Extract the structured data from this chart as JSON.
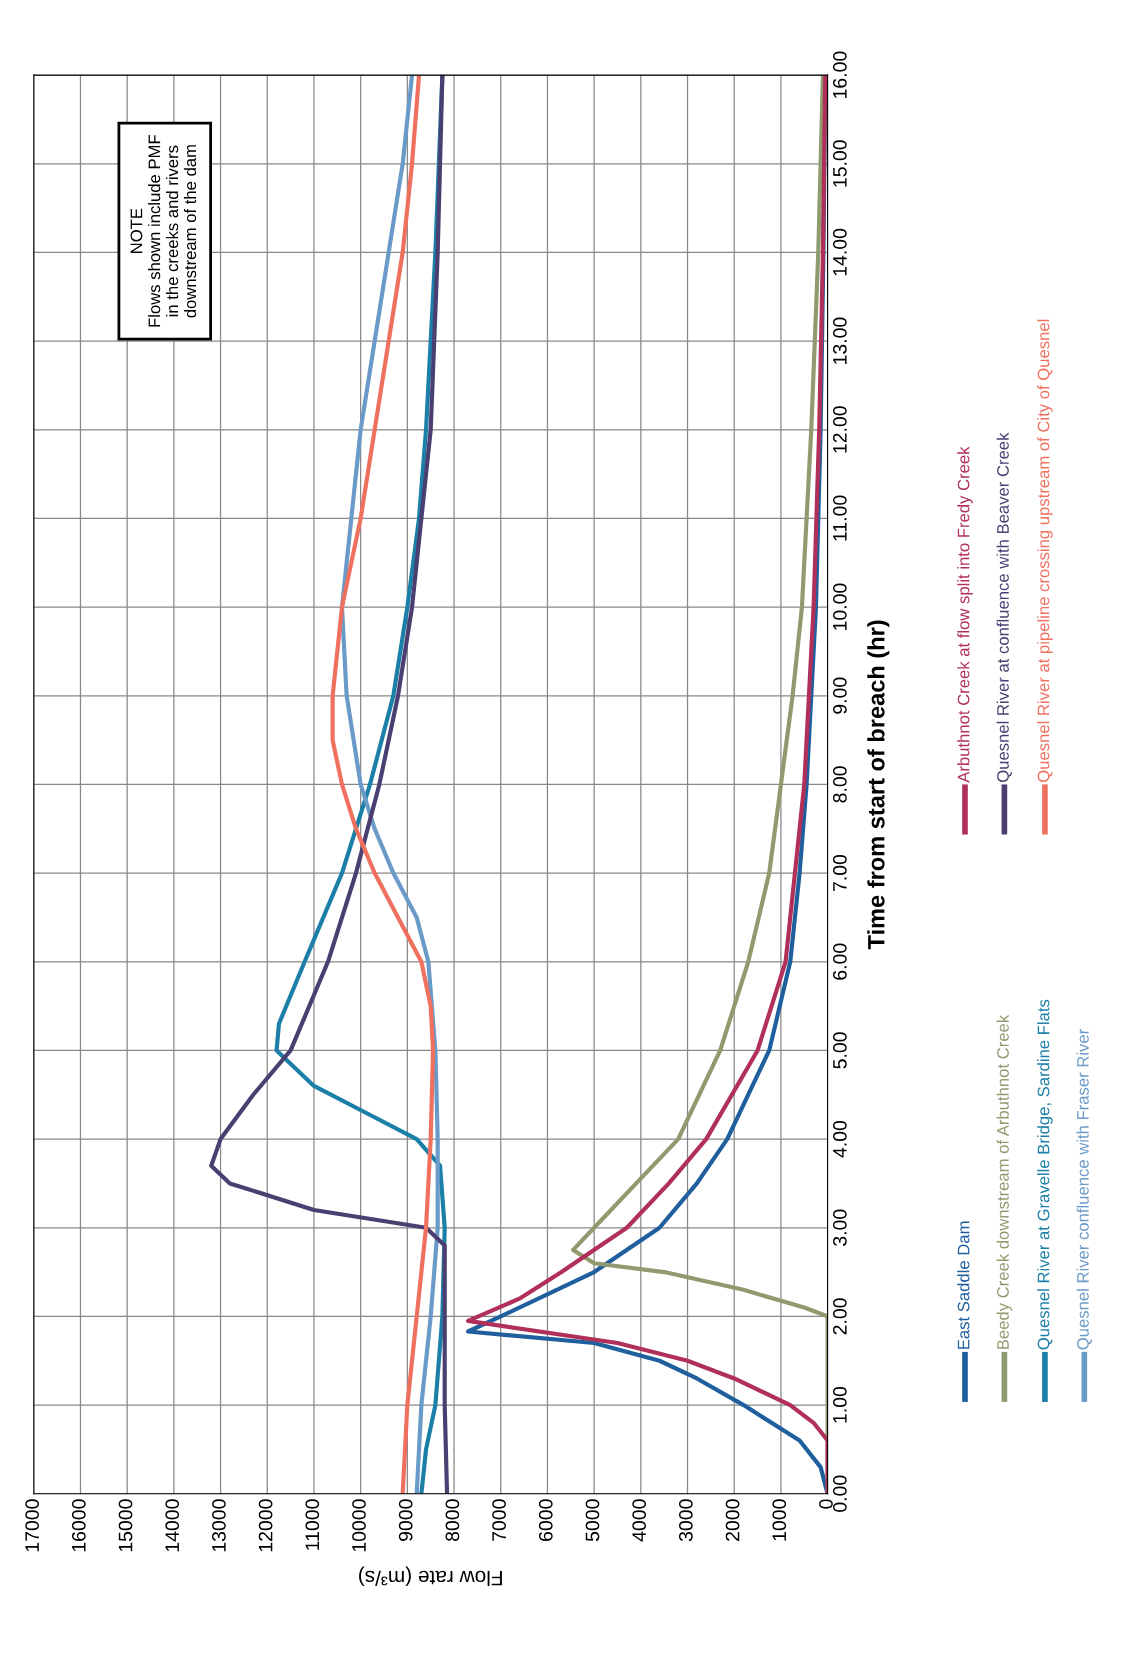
{
  "chart_data": {
    "type": "line",
    "xlabel": "Flow rate (m³/s)",
    "ylabel": "Time from start of breach (hr)",
    "annotations": [
      "NOTE\nFlows shown include PMF\nin the creeks and rivers\ndownstream of the dam"
    ],
    "ylim": [
      0,
      16
    ],
    "yticks": [
      {
        "value": 0,
        "label": "0.00"
      },
      {
        "value": 1,
        "label": "1.00"
      },
      {
        "value": 2,
        "label": "2.00"
      },
      {
        "value": 3,
        "label": "3.00"
      },
      {
        "value": 4,
        "label": "4.00"
      },
      {
        "value": 5,
        "label": "5.00"
      },
      {
        "value": 6,
        "label": "6.00"
      },
      {
        "value": 7,
        "label": "7.00"
      },
      {
        "value": 8,
        "label": "8.00"
      },
      {
        "value": 9,
        "label": "9.00"
      },
      {
        "value": 10,
        "label": "10.00"
      },
      {
        "value": 11,
        "label": "11.00"
      },
      {
        "value": 12,
        "label": "12.00"
      },
      {
        "value": 13,
        "label": "13.00"
      },
      {
        "value": 14,
        "label": "14.00"
      },
      {
        "value": 15,
        "label": "15.00"
      },
      {
        "value": 16,
        "label": "16.00"
      }
    ],
    "xlim": [
      17000,
      0
    ],
    "xticks": [
      0,
      1000,
      2000,
      3000,
      4000,
      5000,
      6000,
      7000,
      8000,
      9000,
      10000,
      11000,
      12000,
      13000,
      14000,
      15000,
      16000,
      17000
    ],
    "grid": true,
    "legend": "bottom",
    "marker": "none",
    "line_style": "solid",
    "series": [
      {
        "name": "East Saddle Dam",
        "color": "#1f5f9e",
        "values": [
          0,
          0.3,
          0.6,
          1,
          1.3,
          1.5,
          1.7,
          1.83,
          2,
          2.3,
          2.5,
          3,
          3.5,
          4,
          5,
          6,
          7,
          8,
          10,
          12,
          14,
          16
        ],
        "x": [
          0,
          150,
          600,
          1800,
          2800,
          3600,
          5000,
          7700,
          7000,
          5800,
          5000,
          3600,
          2800,
          2150,
          1250,
          800,
          600,
          450,
          250,
          150,
          90,
          50
        ]
      },
      {
        "name": "Beedy Creek downstream of Arbuthnot Creek",
        "color": "#8f9a6e",
        "values": [
          0,
          1,
          2,
          2.1,
          2.3,
          2.5,
          2.6,
          2.75,
          3,
          3.5,
          4,
          5,
          6,
          7,
          8,
          9,
          10,
          12,
          14,
          16
        ],
        "x": [
          0,
          0,
          0,
          500,
          1800,
          3500,
          5000,
          5450,
          5000,
          4100,
          3200,
          2300,
          1700,
          1250,
          1000,
          750,
          550,
          350,
          200,
          100
        ]
      },
      {
        "name": "Quesnel River at Gravelle Bridge, Sardine Flats",
        "color": "#1b7fa8",
        "values": [
          0,
          0.5,
          1,
          2,
          3,
          3.7,
          4,
          4.3,
          4.6,
          5,
          5.3,
          6,
          7,
          8,
          9,
          10,
          11,
          12,
          13,
          14,
          16
        ],
        "x": [
          8700,
          8600,
          8400,
          8250,
          8200,
          8300,
          8800,
          9900,
          11000,
          11800,
          11750,
          11200,
          10400,
          9800,
          9300,
          9000,
          8750,
          8600,
          8500,
          8400,
          8250
        ]
      },
      {
        "name": "Quesnel River confluence with Fraser River",
        "color": "#6a9ac8",
        "values": [
          0,
          1,
          2,
          3,
          4,
          5,
          6,
          6.5,
          7,
          7.5,
          8,
          9,
          10,
          11,
          12,
          13,
          14,
          15,
          16
        ],
        "x": [
          8800,
          8700,
          8500,
          8350,
          8350,
          8400,
          8550,
          8800,
          9300,
          9700,
          10000,
          10300,
          10400,
          10200,
          10000,
          9700,
          9400,
          9100,
          8900
        ]
      },
      {
        "name": "Arbuthnot Creek at flow split into Fredy Creek",
        "color": "#b0305a",
        "values": [
          0,
          0.6,
          0.8,
          1,
          1.3,
          1.5,
          1.7,
          1.95,
          2.2,
          2.5,
          3,
          3.5,
          4,
          5,
          6,
          8,
          10,
          12,
          14,
          16
        ],
        "x": [
          0,
          0,
          300,
          800,
          2000,
          3000,
          4500,
          7700,
          6600,
          5700,
          4300,
          3400,
          2600,
          1500,
          900,
          500,
          300,
          180,
          100,
          50
        ]
      },
      {
        "name": "Quesnel River at confluence with Beaver Creek",
        "color": "#4b3f72",
        "values": [
          0,
          1,
          2,
          2.8,
          3,
          3.2,
          3.5,
          3.7,
          4,
          4.5,
          5,
          6,
          7,
          8,
          9,
          10,
          12,
          14,
          16
        ],
        "x": [
          8150,
          8200,
          8200,
          8200,
          8600,
          11000,
          12800,
          13200,
          13000,
          12300,
          11500,
          10700,
          10100,
          9600,
          9200,
          8900,
          8500,
          8350,
          8250
        ]
      },
      {
        "name": "Quesnel River at pipeline crossing upstream of City of Quesnel",
        "color": "#f07060",
        "values": [
          0,
          1,
          2,
          3,
          4,
          5,
          5.5,
          6,
          6.5,
          7,
          7.5,
          8,
          8.5,
          9,
          10,
          11,
          12,
          13,
          14,
          15,
          16
        ],
        "x": [
          9100,
          9000,
          8800,
          8600,
          8500,
          8450,
          8500,
          8700,
          9200,
          9700,
          10100,
          10400,
          10600,
          10600,
          10400,
          10000,
          9700,
          9400,
          9100,
          8900,
          8750
        ]
      }
    ]
  }
}
